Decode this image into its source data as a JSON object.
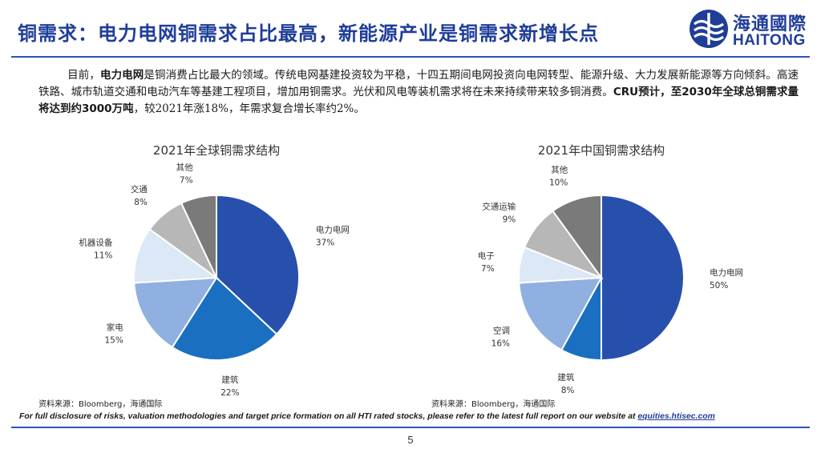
{
  "header": {
    "title": "铜需求：电力电网铜需求占比最高，新能源产业是铜需求新增长点",
    "logo_cn": "海通國際",
    "logo_en": "HAITONG"
  },
  "body": {
    "p1": "目前，",
    "b1": "电力电网",
    "p2": "是铜消费占比最大的领域。传统电网基建投资较为平稳，十四五期间电网投资向电网转型、能源升级、大力发展新能源等方向倾斜。高速铁路、城市轨道交通和电动汽车等基建工程项目，增加用铜需求。光伏和风电等装机需求将在未来持续带来较多铜消费。",
    "b2": "CRU预计，至2030年全球总铜需求量将达到约3000万吨",
    "p3": "，较2021年涨18%，年需求复合增长率约2%。"
  },
  "colors": {
    "blue_dark": "#2650ab",
    "blue_mid": "#1a6fc0",
    "blue_light": "#8fb0e0",
    "blue_pale": "#dde8f6",
    "gray_light": "#b7b7b7",
    "gray_dark": "#7a7a7a"
  },
  "chart_data": [
    {
      "type": "pie",
      "title": "2021年全球铜需求结构",
      "slices": [
        {
          "label": "电力电网",
          "value": 37,
          "value_label": "37%",
          "color": "#2650ab"
        },
        {
          "label": "建筑",
          "value": 22,
          "value_label": "22%",
          "color": "#1a6fc0"
        },
        {
          "label": "家电",
          "value": 15,
          "value_label": "15%",
          "color": "#8fb0e0"
        },
        {
          "label": "机器设备",
          "value": 11,
          "value_label": "11%",
          "color": "#dde8f6"
        },
        {
          "label": "交通",
          "value": 8,
          "value_label": "8%",
          "color": "#b7b7b7"
        },
        {
          "label": "其他",
          "value": 7,
          "value_label": "7%",
          "color": "#7a7a7a"
        }
      ]
    },
    {
      "type": "pie",
      "title": "2021年中国铜需求结构",
      "slices": [
        {
          "label": "电力电网",
          "value": 50,
          "value_label": "50%",
          "color": "#2650ab"
        },
        {
          "label": "建筑",
          "value": 8,
          "value_label": "8%",
          "color": "#1a6fc0"
        },
        {
          "label": "空调",
          "value": 16,
          "value_label": "16%",
          "color": "#8fb0e0"
        },
        {
          "label": "电子",
          "value": 7,
          "value_label": "7%",
          "color": "#dde8f6"
        },
        {
          "label": "交通运输",
          "value": 9,
          "value_label": "9%",
          "color": "#b7b7b7"
        },
        {
          "label": "其他",
          "value": 10,
          "value_label": "10%",
          "color": "#7a7a7a"
        }
      ]
    }
  ],
  "sources": {
    "left": "资料来源：Bloomberg，海通国际",
    "right": "资料来源：Bloomberg，海通国际"
  },
  "disclosure": {
    "text": "For full disclosure of risks, valuation methodologies and target price formation on all HTI rated stocks, please refer to the latest full report on our website at ",
    "link": "equities.htisec.com"
  },
  "page_number": "5"
}
